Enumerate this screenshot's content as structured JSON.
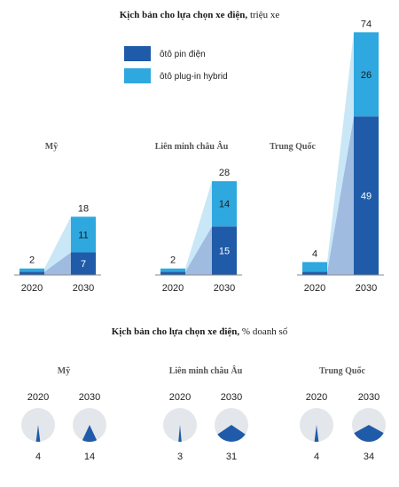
{
  "colors": {
    "bev": "#1f5ba8",
    "phev": "#2ea8df",
    "bev_area": "#9fbbe0",
    "phev_area": "#c9e7f6",
    "baseline": "#8a8a8a",
    "pie_bg": "#e3e6ea",
    "text": "#222222"
  },
  "chart_data": [
    {
      "type": "bar",
      "stacked": true,
      "title_bold": "Kịch bản cho lựa chọn xe điện,",
      "title_rest": "triệu xe",
      "legend": [
        {
          "key": "bev",
          "label": "ôtô pin điện"
        },
        {
          "key": "phev",
          "label": "ôtô plug-in hybrid"
        }
      ],
      "legend_position": "top-center",
      "categories": [
        "2020",
        "2030"
      ],
      "groups": [
        {
          "name": "Mỹ",
          "bev": [
            1,
            7
          ],
          "phev": [
            1,
            11
          ],
          "totals": [
            2,
            18
          ]
        },
        {
          "name": "Liên minh châu Âu",
          "bev": [
            1,
            15
          ],
          "phev": [
            1,
            14
          ],
          "totals": [
            2,
            28
          ]
        },
        {
          "name": "Trung Quốc",
          "bev": [
            1,
            49
          ],
          "phev": [
            3,
            26
          ],
          "totals": [
            4,
            74
          ]
        }
      ],
      "series": [
        {
          "name": "ôtô pin điện",
          "key": "bev"
        },
        {
          "name": "ôtô plug-in hybrid",
          "key": "phev"
        }
      ]
    },
    {
      "type": "pie",
      "title_bold": "Kịch bản cho lựa chọn xe điện,",
      "title_rest": "% doanh số",
      "categories": [
        "2020",
        "2030"
      ],
      "groups": [
        {
          "name": "Mỹ",
          "values": [
            4,
            14
          ]
        },
        {
          "name": "Liên minh châu Âu",
          "values": [
            3,
            31
          ]
        },
        {
          "name": "Trung Quốc",
          "values": [
            4,
            34
          ]
        }
      ]
    }
  ]
}
